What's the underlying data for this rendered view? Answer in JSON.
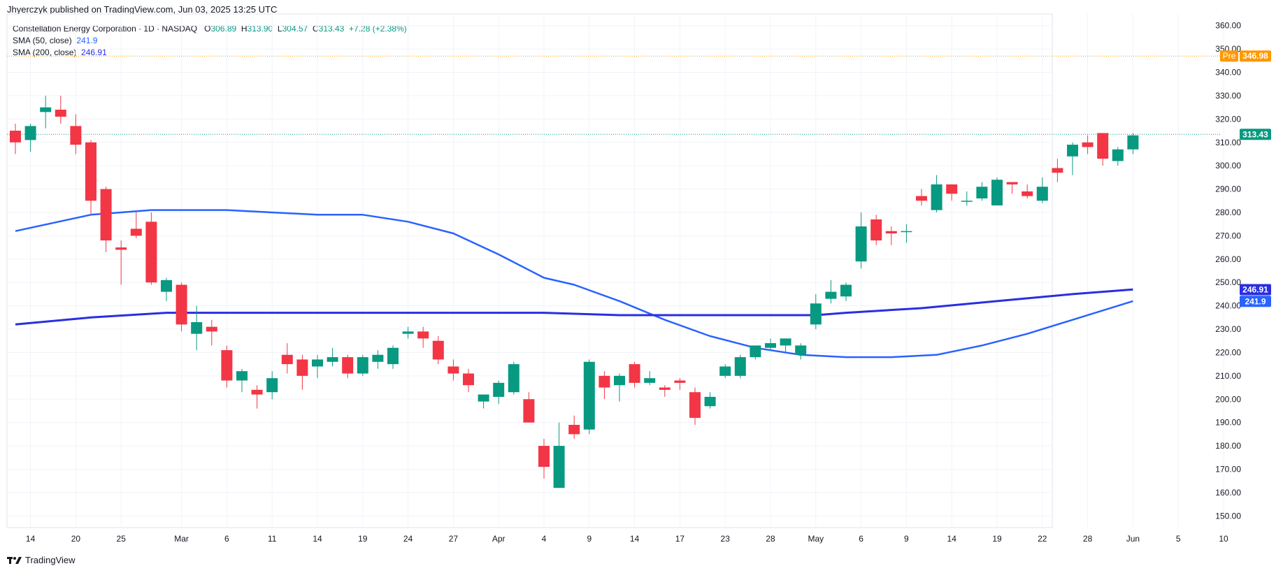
{
  "header": {
    "published": "Jhyerczyk published on TradingView.com, Jun 03, 2025 13:25 UTC"
  },
  "legend": {
    "symbol": "Constellation Energy Corporation · 1D · NASDAQ",
    "o_label": "O",
    "o_value": "306.89",
    "h_label": "H",
    "h_value": "313.90",
    "l_label": "L",
    "l_value": "304.57",
    "c_label": "C",
    "c_value": "313.43",
    "change": "+7.28 (+2.38%)",
    "sma50_label": "SMA (50, close)",
    "sma50_value": "241.9",
    "sma200_label": "SMA (200, close)",
    "sma200_value": "246.91"
  },
  "footer": {
    "brand": "TradingView"
  },
  "colors": {
    "up": "#089981",
    "down": "#f23645",
    "sma50": "#2962ff",
    "sma200": "#2a2ee0",
    "pre": "#ff9800",
    "grid": "#f0f3fa"
  },
  "chart_data": {
    "type": "candlestick",
    "ylim": [
      145,
      365
    ],
    "y_ticks": [
      150,
      160,
      170,
      180,
      190,
      200,
      210,
      220,
      230,
      240,
      250,
      260,
      270,
      280,
      290,
      300,
      310,
      320,
      330,
      340,
      350,
      360
    ],
    "x_ticks": [
      {
        "label": "14",
        "i": 1
      },
      {
        "label": "20",
        "i": 4
      },
      {
        "label": "25",
        "i": 7
      },
      {
        "label": "Mar",
        "i": 11
      },
      {
        "label": "6",
        "i": 14
      },
      {
        "label": "11",
        "i": 17
      },
      {
        "label": "14",
        "i": 20
      },
      {
        "label": "19",
        "i": 23
      },
      {
        "label": "24",
        "i": 26
      },
      {
        "label": "27",
        "i": 29
      },
      {
        "label": "Apr",
        "i": 32
      },
      {
        "label": "4",
        "i": 35
      },
      {
        "label": "9",
        "i": 38
      },
      {
        "label": "14",
        "i": 41
      },
      {
        "label": "17",
        "i": 44
      },
      {
        "label": "23",
        "i": 47
      },
      {
        "label": "28",
        "i": 50
      },
      {
        "label": "May",
        "i": 53
      },
      {
        "label": "6",
        "i": 56
      },
      {
        "label": "9",
        "i": 59
      },
      {
        "label": "14",
        "i": 62
      },
      {
        "label": "19",
        "i": 65
      },
      {
        "label": "22",
        "i": 68
      },
      {
        "label": "28",
        "i": 71
      },
      {
        "label": "Jun",
        "i": 74
      },
      {
        "label": "5",
        "i": 77
      },
      {
        "label": "10",
        "i": 80
      }
    ],
    "candles": [
      {
        "o": 315,
        "h": 318,
        "l": 305,
        "c": 310
      },
      {
        "o": 311,
        "h": 318,
        "l": 306,
        "c": 317
      },
      {
        "o": 323,
        "h": 330,
        "l": 316,
        "c": 325
      },
      {
        "o": 324,
        "h": 330,
        "l": 318,
        "c": 321
      },
      {
        "o": 317,
        "h": 322,
        "l": 305,
        "c": 309
      },
      {
        "o": 310,
        "h": 311,
        "l": 279,
        "c": 285
      },
      {
        "o": 290,
        "h": 291,
        "l": 263,
        "c": 268
      },
      {
        "o": 265,
        "h": 268,
        "l": 249,
        "c": 264
      },
      {
        "o": 273,
        "h": 280,
        "l": 269,
        "c": 270
      },
      {
        "o": 276,
        "h": 280,
        "l": 249,
        "c": 250
      },
      {
        "o": 246,
        "h": 252,
        "l": 242,
        "c": 251
      },
      {
        "o": 249,
        "h": 250,
        "l": 229,
        "c": 232
      },
      {
        "o": 228,
        "h": 240,
        "l": 221,
        "c": 233
      },
      {
        "o": 231,
        "h": 234,
        "l": 223,
        "c": 229
      },
      {
        "o": 221,
        "h": 223,
        "l": 205,
        "c": 208
      },
      {
        "o": 208,
        "h": 213,
        "l": 203,
        "c": 212
      },
      {
        "o": 204,
        "h": 206,
        "l": 196,
        "c": 202
      },
      {
        "o": 203,
        "h": 212,
        "l": 200,
        "c": 209
      },
      {
        "o": 219,
        "h": 224,
        "l": 211,
        "c": 215
      },
      {
        "o": 217,
        "h": 219,
        "l": 204,
        "c": 210
      },
      {
        "o": 214,
        "h": 219,
        "l": 209,
        "c": 217
      },
      {
        "o": 216,
        "h": 222,
        "l": 214,
        "c": 218
      },
      {
        "o": 218,
        "h": 219,
        "l": 209,
        "c": 211
      },
      {
        "o": 211,
        "h": 219,
        "l": 210,
        "c": 218
      },
      {
        "o": 216,
        "h": 221,
        "l": 213,
        "c": 219
      },
      {
        "o": 215,
        "h": 223,
        "l": 213,
        "c": 222
      },
      {
        "o": 228,
        "h": 231,
        "l": 226,
        "c": 229
      },
      {
        "o": 229,
        "h": 231,
        "l": 222,
        "c": 226
      },
      {
        "o": 225,
        "h": 227,
        "l": 215,
        "c": 217
      },
      {
        "o": 214,
        "h": 217,
        "l": 208,
        "c": 211
      },
      {
        "o": 211,
        "h": 213,
        "l": 203,
        "c": 206
      },
      {
        "o": 199,
        "h": 202,
        "l": 196,
        "c": 202
      },
      {
        "o": 201,
        "h": 208,
        "l": 198,
        "c": 207
      },
      {
        "o": 203,
        "h": 216,
        "l": 202,
        "c": 215
      },
      {
        "o": 200,
        "h": 203,
        "l": 190,
        "c": 190
      },
      {
        "o": 180,
        "h": 183,
        "l": 166,
        "c": 171
      },
      {
        "o": 162,
        "h": 190,
        "l": 162,
        "c": 180
      },
      {
        "o": 189,
        "h": 193,
        "l": 183,
        "c": 185
      },
      {
        "o": 187,
        "h": 217,
        "l": 185,
        "c": 216
      },
      {
        "o": 210,
        "h": 212,
        "l": 200,
        "c": 205
      },
      {
        "o": 206,
        "h": 211,
        "l": 199,
        "c": 210
      },
      {
        "o": 215,
        "h": 216,
        "l": 205,
        "c": 207
      },
      {
        "o": 207,
        "h": 212,
        "l": 206,
        "c": 209
      },
      {
        "o": 205,
        "h": 206,
        "l": 201,
        "c": 204
      },
      {
        "o": 208,
        "h": 209,
        "l": 204,
        "c": 207
      },
      {
        "o": 203,
        "h": 205,
        "l": 189,
        "c": 192
      },
      {
        "o": 197,
        "h": 203,
        "l": 196,
        "c": 201
      },
      {
        "o": 210,
        "h": 215,
        "l": 209,
        "c": 214
      },
      {
        "o": 210,
        "h": 219,
        "l": 209,
        "c": 218
      },
      {
        "o": 218,
        "h": 223,
        "l": 217,
        "c": 223
      },
      {
        "o": 222,
        "h": 226,
        "l": 221,
        "c": 224
      },
      {
        "o": 223,
        "h": 226,
        "l": 220,
        "c": 226
      },
      {
        "o": 219,
        "h": 224,
        "l": 217,
        "c": 223
      },
      {
        "o": 232,
        "h": 245,
        "l": 230,
        "c": 241
      },
      {
        "o": 243,
        "h": 251,
        "l": 241,
        "c": 246
      },
      {
        "o": 244,
        "h": 250,
        "l": 242,
        "c": 249
      },
      {
        "o": 259,
        "h": 280,
        "l": 256,
        "c": 274
      },
      {
        "o": 277,
        "h": 279,
        "l": 266,
        "c": 268
      },
      {
        "o": 272,
        "h": 274,
        "l": 266,
        "c": 271
      },
      {
        "o": 272,
        "h": 275,
        "l": 267,
        "c": 272
      },
      {
        "o": 287,
        "h": 290,
        "l": 283,
        "c": 285
      },
      {
        "o": 281,
        "h": 296,
        "l": 280,
        "c": 292
      },
      {
        "o": 292,
        "h": 292,
        "l": 285,
        "c": 288
      },
      {
        "o": 285,
        "h": 289,
        "l": 283,
        "c": 285
      },
      {
        "o": 286,
        "h": 293,
        "l": 285,
        "c": 291
      },
      {
        "o": 283,
        "h": 295,
        "l": 283,
        "c": 294
      },
      {
        "o": 293,
        "h": 293,
        "l": 288,
        "c": 292
      },
      {
        "o": 289,
        "h": 292,
        "l": 286,
        "c": 287
      },
      {
        "o": 285,
        "h": 295,
        "l": 284,
        "c": 291
      },
      {
        "o": 299,
        "h": 303,
        "l": 293,
        "c": 297
      },
      {
        "o": 304,
        "h": 310,
        "l": 296,
        "c": 309
      },
      {
        "o": 310,
        "h": 313,
        "l": 305,
        "c": 308
      },
      {
        "o": 314,
        "h": 314,
        "l": 300,
        "c": 303
      },
      {
        "o": 302,
        "h": 308,
        "l": 300,
        "c": 307
      },
      {
        "o": 307,
        "h": 314,
        "l": 305,
        "c": 313
      }
    ],
    "series": [
      {
        "name": "SMA (50, close)",
        "x": [
          0,
          5,
          7,
          9,
          11,
          14,
          17,
          20,
          23,
          26,
          29,
          32,
          35,
          37,
          40,
          43,
          46,
          49,
          52,
          55,
          58,
          61,
          64,
          67,
          70,
          74
        ],
        "values": [
          272,
          279,
          280,
          281,
          281,
          281,
          280,
          279,
          279,
          276,
          271,
          262,
          252,
          249,
          242,
          234,
          227,
          222,
          219,
          218,
          218,
          219,
          223,
          228,
          234,
          242
        ]
      },
      {
        "name": "SMA (200, close)",
        "x": [
          0,
          5,
          10,
          15,
          20,
          25,
          30,
          35,
          40,
          45,
          50,
          53,
          55,
          60,
          65,
          70,
          74
        ],
        "values": [
          232,
          235,
          237,
          237,
          237,
          237,
          237,
          237,
          236,
          236,
          236,
          236,
          237,
          239,
          242,
          245,
          247
        ]
      }
    ],
    "pre_market": {
      "label": "Pre",
      "value": "346.98"
    },
    "last_price": "313.43",
    "sma50_last": "241.9",
    "sma200_last": "246.91"
  }
}
